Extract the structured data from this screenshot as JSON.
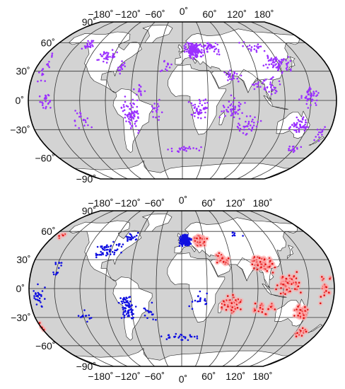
{
  "colors": {
    "ocean": "#d3d3d3",
    "land": "#ffffff",
    "top_markers": "#9b30ff",
    "bottom_markers_west": "#1010e0",
    "bottom_markers_east": "#e01010",
    "bottom_marker_halo": "#ffaaaa"
  },
  "projection": "Robinson",
  "maps": [
    {
      "id": "top-map",
      "lon_labels_top": [
        "−180˚",
        "−120˚",
        "−60˚",
        "0˚",
        "60˚",
        "120˚",
        "180˚"
      ],
      "lat_labels_left": [
        "90˚",
        "60˚",
        "30˚",
        "0˚",
        "−30˚",
        "−60˚",
        "−90˚"
      ]
    },
    {
      "id": "bottom-map",
      "lon_labels_top": [
        "−180˚",
        "−120˚",
        "−60˚",
        "0˚",
        "60˚",
        "120˚",
        "180˚"
      ],
      "lon_labels_bottom": [
        "−180˚",
        "−120˚",
        "−60˚",
        "0˚",
        "60˚",
        "120˚",
        "180˚"
      ],
      "lat_labels_left": [
        "90˚",
        "60˚",
        "30˚",
        "0˚",
        "−30˚",
        "−60˚",
        "−90˚"
      ]
    }
  ]
}
